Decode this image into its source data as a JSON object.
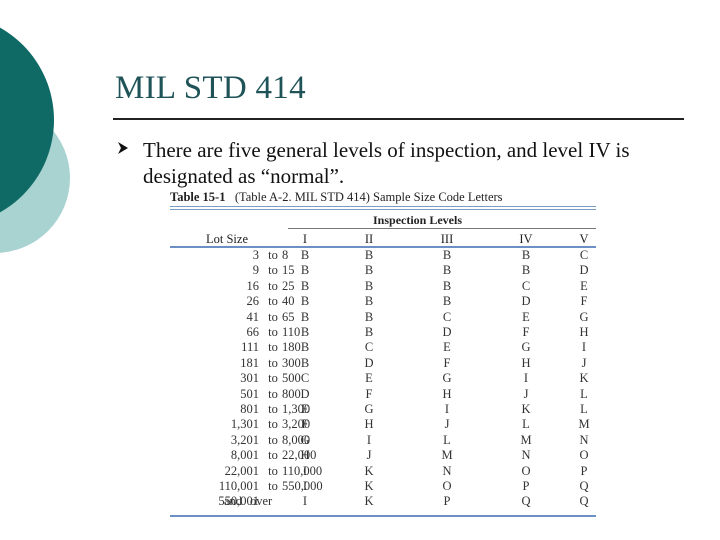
{
  "slide": {
    "title": "MIL STD 414",
    "bullet": "There are five general levels of inspection, and level IV is designated as “normal”.",
    "accent_colors": {
      "dark_teal": "#0f6a66",
      "light_teal": "#a8d3d1",
      "table_rule": "#6c90c3"
    }
  },
  "table": {
    "number": "Table 15-1",
    "caption": "(Table A-2. MIL STD 414) Sample Size Code Letters",
    "group_header": "Inspection Levels",
    "headers": [
      "Lot Size",
      "I",
      "II",
      "III",
      "IV",
      "V"
    ],
    "rows": [
      {
        "lo": "3",
        "sep": "to",
        "hi": "8",
        "l": [
          "B",
          "B",
          "B",
          "B",
          "C"
        ]
      },
      {
        "lo": "9",
        "sep": "to",
        "hi": "15",
        "l": [
          "B",
          "B",
          "B",
          "B",
          "D"
        ]
      },
      {
        "lo": "16",
        "sep": "to",
        "hi": "25",
        "l": [
          "B",
          "B",
          "B",
          "C",
          "E"
        ]
      },
      {
        "lo": "26",
        "sep": "to",
        "hi": "40",
        "l": [
          "B",
          "B",
          "B",
          "D",
          "F"
        ]
      },
      {
        "lo": "41",
        "sep": "to",
        "hi": "65",
        "l": [
          "B",
          "B",
          "C",
          "E",
          "G"
        ]
      },
      {
        "lo": "66",
        "sep": "to",
        "hi": "110",
        "l": [
          "B",
          "B",
          "D",
          "F",
          "H"
        ]
      },
      {
        "lo": "111",
        "sep": "to",
        "hi": "180",
        "l": [
          "B",
          "C",
          "E",
          "G",
          "I"
        ]
      },
      {
        "lo": "181",
        "sep": "to",
        "hi": "300",
        "l": [
          "B",
          "D",
          "F",
          "H",
          "J"
        ]
      },
      {
        "lo": "301",
        "sep": "to",
        "hi": "500",
        "l": [
          "C",
          "E",
          "G",
          "I",
          "K"
        ]
      },
      {
        "lo": "501",
        "sep": "to",
        "hi": "800",
        "l": [
          "D",
          "F",
          "H",
          "J",
          "L"
        ]
      },
      {
        "lo": "801",
        "sep": "to",
        "hi": "1,300",
        "l": [
          "E",
          "G",
          "I",
          "K",
          "L"
        ]
      },
      {
        "lo": "1,301",
        "sep": "to",
        "hi": "3,200",
        "l": [
          "F",
          "H",
          "J",
          "L",
          "M"
        ]
      },
      {
        "lo": "3,201",
        "sep": "to",
        "hi": "8,000",
        "l": [
          "G",
          "I",
          "L",
          "M",
          "N"
        ]
      },
      {
        "lo": "8,001",
        "sep": "to",
        "hi": "22,000",
        "l": [
          "H",
          "J",
          "M",
          "N",
          "O"
        ]
      },
      {
        "lo": "22,001",
        "sep": "to",
        "hi": "110,000",
        "l": [
          "I",
          "K",
          "N",
          "O",
          "P"
        ]
      },
      {
        "lo": "110,001",
        "sep": "to",
        "hi": "550,000",
        "l": [
          "I",
          "K",
          "O",
          "P",
          "Q"
        ]
      },
      {
        "lo": "550,001",
        "sep": "and",
        "hi": "over",
        "l": [
          "I",
          "K",
          "P",
          "Q",
          "Q"
        ]
      }
    ]
  }
}
